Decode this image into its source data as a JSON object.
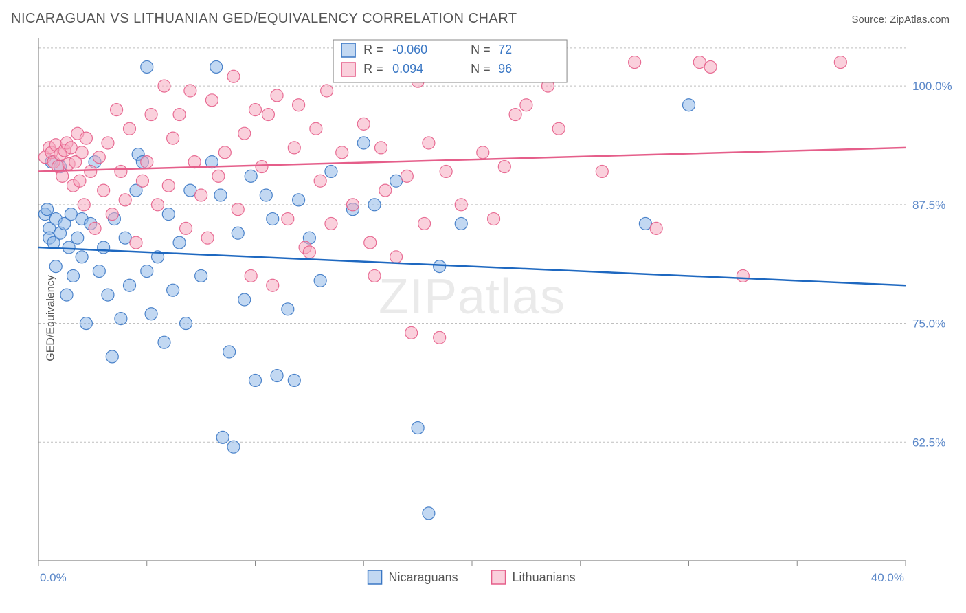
{
  "title": "NICARAGUAN VS LITHUANIAN GED/EQUIVALENCY CORRELATION CHART",
  "source": "Source: ZipAtlas.com",
  "ylabel": "GED/Equivalency",
  "watermark": "ZIPatlas",
  "chart": {
    "type": "scatter",
    "background_color": "#ffffff",
    "plot_border_color": "#888888",
    "grid_color": "#bfbfbf",
    "grid_dash": "3,3",
    "xlim": [
      0,
      40
    ],
    "ylim": [
      50,
      105
    ],
    "x_ticks_major": [
      0,
      40
    ],
    "x_ticks_minor": [
      5,
      10,
      15,
      20,
      25,
      30,
      35
    ],
    "x_tick_labels": [
      "0.0%",
      "40.0%"
    ],
    "y_ticks": [
      62.5,
      75.0,
      87.5,
      100.0
    ],
    "y_tick_labels": [
      "62.5%",
      "75.0%",
      "87.5%",
      "100.0%"
    ],
    "marker_radius": 9,
    "marker_opacity": 0.55,
    "marker_stroke_opacity": 0.9,
    "line_width": 2.5,
    "series": [
      {
        "name": "Nicaraguans",
        "fill_color": "#8fb8e8",
        "stroke_color": "#3a77c4",
        "line_color": "#1e68c0",
        "R": "-0.060",
        "N": "72",
        "trend": {
          "x1": 0,
          "y1": 83.0,
          "x2": 40,
          "y2": 79.0
        },
        "points": [
          [
            0.3,
            86.5
          ],
          [
            0.4,
            87.0
          ],
          [
            0.5,
            85.0
          ],
          [
            0.5,
            84.0
          ],
          [
            0.6,
            92.0
          ],
          [
            0.7,
            83.5
          ],
          [
            0.8,
            86.0
          ],
          [
            0.8,
            81.0
          ],
          [
            1.0,
            84.5
          ],
          [
            1.0,
            91.5
          ],
          [
            1.2,
            85.5
          ],
          [
            1.3,
            78.0
          ],
          [
            1.4,
            83.0
          ],
          [
            1.5,
            86.5
          ],
          [
            1.6,
            80.0
          ],
          [
            1.8,
            84.0
          ],
          [
            2.0,
            82.0
          ],
          [
            2.0,
            86.0
          ],
          [
            2.2,
            75.0
          ],
          [
            2.4,
            85.5
          ],
          [
            2.6,
            92.0
          ],
          [
            2.8,
            80.5
          ],
          [
            3.0,
            83.0
          ],
          [
            3.2,
            78.0
          ],
          [
            3.4,
            71.5
          ],
          [
            3.5,
            86.0
          ],
          [
            3.8,
            75.5
          ],
          [
            4.0,
            84.0
          ],
          [
            4.2,
            79.0
          ],
          [
            4.5,
            89.0
          ],
          [
            4.6,
            92.8
          ],
          [
            4.8,
            92.0
          ],
          [
            5.0,
            80.5
          ],
          [
            5.0,
            102.0
          ],
          [
            5.2,
            76.0
          ],
          [
            5.5,
            82.0
          ],
          [
            5.8,
            73.0
          ],
          [
            6.0,
            86.5
          ],
          [
            6.2,
            78.5
          ],
          [
            6.5,
            83.5
          ],
          [
            6.8,
            75.0
          ],
          [
            7.0,
            89.0
          ],
          [
            7.5,
            80.0
          ],
          [
            8.0,
            92.0
          ],
          [
            8.2,
            102.0
          ],
          [
            8.4,
            88.5
          ],
          [
            8.5,
            63.0
          ],
          [
            8.8,
            72.0
          ],
          [
            9.0,
            62.0
          ],
          [
            9.2,
            84.5
          ],
          [
            9.5,
            77.5
          ],
          [
            9.8,
            90.5
          ],
          [
            10.0,
            69.0
          ],
          [
            10.5,
            88.5
          ],
          [
            10.8,
            86.0
          ],
          [
            11.0,
            69.5
          ],
          [
            11.5,
            76.5
          ],
          [
            11.8,
            69.0
          ],
          [
            12.0,
            88.0
          ],
          [
            12.5,
            84.0
          ],
          [
            13.0,
            79.5
          ],
          [
            13.5,
            91.0
          ],
          [
            14.5,
            87.0
          ],
          [
            15.0,
            94.0
          ],
          [
            15.5,
            87.5
          ],
          [
            16.5,
            90.0
          ],
          [
            17.5,
            64.0
          ],
          [
            18.0,
            55.0
          ],
          [
            18.5,
            81.0
          ],
          [
            19.5,
            85.5
          ],
          [
            28.0,
            85.5
          ],
          [
            30.0,
            98.0
          ]
        ]
      },
      {
        "name": "Lithuanians",
        "fill_color": "#f5aac0",
        "stroke_color": "#e55e8a",
        "line_color": "#e55e8a",
        "R": "0.094",
        "N": "96",
        "trend": {
          "x1": 0,
          "y1": 91.0,
          "x2": 40,
          "y2": 93.5
        },
        "points": [
          [
            0.3,
            92.5
          ],
          [
            0.5,
            93.5
          ],
          [
            0.6,
            93.0
          ],
          [
            0.7,
            92.0
          ],
          [
            0.8,
            93.8
          ],
          [
            0.9,
            91.5
          ],
          [
            1.0,
            92.8
          ],
          [
            1.1,
            90.5
          ],
          [
            1.2,
            93.2
          ],
          [
            1.3,
            94.0
          ],
          [
            1.4,
            91.8
          ],
          [
            1.5,
            93.5
          ],
          [
            1.6,
            89.5
          ],
          [
            1.7,
            92.0
          ],
          [
            1.8,
            95.0
          ],
          [
            1.9,
            90.0
          ],
          [
            2.0,
            93.0
          ],
          [
            2.1,
            87.5
          ],
          [
            2.2,
            94.5
          ],
          [
            2.4,
            91.0
          ],
          [
            2.6,
            85.0
          ],
          [
            2.8,
            92.5
          ],
          [
            3.0,
            89.0
          ],
          [
            3.2,
            94.0
          ],
          [
            3.4,
            86.5
          ],
          [
            3.6,
            97.5
          ],
          [
            3.8,
            91.0
          ],
          [
            4.0,
            88.0
          ],
          [
            4.2,
            95.5
          ],
          [
            4.5,
            83.5
          ],
          [
            4.8,
            90.0
          ],
          [
            5.0,
            92.0
          ],
          [
            5.2,
            97.0
          ],
          [
            5.5,
            87.5
          ],
          [
            5.8,
            100.0
          ],
          [
            6.0,
            89.5
          ],
          [
            6.2,
            94.5
          ],
          [
            6.5,
            97.0
          ],
          [
            6.8,
            85.0
          ],
          [
            7.0,
            99.5
          ],
          [
            7.2,
            92.0
          ],
          [
            7.5,
            88.5
          ],
          [
            7.8,
            84.0
          ],
          [
            8.0,
            98.5
          ],
          [
            8.3,
            90.5
          ],
          [
            8.6,
            93.0
          ],
          [
            9.0,
            101.0
          ],
          [
            9.2,
            87.0
          ],
          [
            9.5,
            95.0
          ],
          [
            9.8,
            80.0
          ],
          [
            10.0,
            97.5
          ],
          [
            10.3,
            91.5
          ],
          [
            10.6,
            97.0
          ],
          [
            10.8,
            79.0
          ],
          [
            11.0,
            99.0
          ],
          [
            11.5,
            86.0
          ],
          [
            11.8,
            93.5
          ],
          [
            12.0,
            98.0
          ],
          [
            12.3,
            83.0
          ],
          [
            12.5,
            82.5
          ],
          [
            12.8,
            95.5
          ],
          [
            13.0,
            90.0
          ],
          [
            13.3,
            99.5
          ],
          [
            13.5,
            85.5
          ],
          [
            14.0,
            93.0
          ],
          [
            14.5,
            87.5
          ],
          [
            15.0,
            96.0
          ],
          [
            15.3,
            83.5
          ],
          [
            15.5,
            80.0
          ],
          [
            15.8,
            93.5
          ],
          [
            16.0,
            89.0
          ],
          [
            16.5,
            82.0
          ],
          [
            17.0,
            90.5
          ],
          [
            17.2,
            74.0
          ],
          [
            17.5,
            100.5
          ],
          [
            17.8,
            85.5
          ],
          [
            18.0,
            94.0
          ],
          [
            18.5,
            73.5
          ],
          [
            18.8,
            91.0
          ],
          [
            19.5,
            87.5
          ],
          [
            20.0,
            101.5
          ],
          [
            20.5,
            93.0
          ],
          [
            21.0,
            86.0
          ],
          [
            21.0,
            102.0
          ],
          [
            21.5,
            91.5
          ],
          [
            22.0,
            97.0
          ],
          [
            22.5,
            98.0
          ],
          [
            23.5,
            100.0
          ],
          [
            24.0,
            95.5
          ],
          [
            26.0,
            91.0
          ],
          [
            27.5,
            102.5
          ],
          [
            28.5,
            85.0
          ],
          [
            30.5,
            102.5
          ],
          [
            31.0,
            102.0
          ],
          [
            32.5,
            80.0
          ],
          [
            37.0,
            102.5
          ]
        ]
      }
    ],
    "top_legend": {
      "R_label": "R =",
      "N_label": "N ="
    },
    "bottom_legend": {
      "items": [
        "Nicaraguans",
        "Lithuanians"
      ]
    }
  }
}
